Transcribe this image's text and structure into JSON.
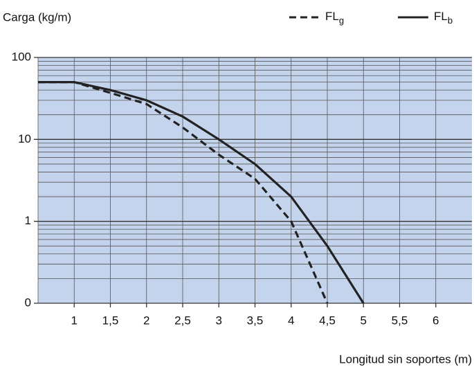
{
  "chart_data": {
    "type": "line",
    "y_label": "Carga (kg/m)",
    "x_label": "Longitud sin soportes (m)",
    "x": [
      0.5,
      1,
      1.5,
      2,
      2.5,
      3,
      3.5,
      4,
      4.5,
      5
    ],
    "series": [
      {
        "name": "FLg",
        "color": "#222222",
        "dash": true,
        "values": [
          50,
          50,
          37,
          27,
          14,
          6.5,
          3.3,
          1,
          0.1,
          null
        ]
      },
      {
        "name": "FLb",
        "color": "#222222",
        "dash": false,
        "values": [
          50,
          50,
          40,
          30,
          19,
          10,
          5,
          2,
          0.5,
          0.1
        ]
      }
    ],
    "xlim": [
      0.5,
      6.5
    ],
    "xticks": [
      1,
      {
        "value": 1.5,
        "label": "1,5"
      },
      2,
      {
        "value": 2.5,
        "label": "2,5"
      },
      3,
      {
        "value": 3.5,
        "label": "3,5"
      },
      4,
      {
        "value": 4.5,
        "label": "4,5"
      },
      5,
      {
        "value": 5.5,
        "label": "5,5"
      },
      6
    ],
    "x_gridlines": [
      0.5,
      1,
      1.5,
      2,
      2.5,
      3,
      3.5,
      4,
      4.5,
      5,
      5.5,
      6
    ],
    "ylim": [
      0.1,
      100
    ],
    "yticks": [
      {
        "value": 0.1,
        "label": "0"
      },
      1,
      10,
      100
    ],
    "y_minor_gridlines": [
      0.2,
      0.3,
      0.4,
      0.5,
      0.6,
      0.7,
      0.8,
      0.9,
      2,
      3,
      4,
      5,
      6,
      7,
      8,
      9,
      20,
      30,
      40,
      50,
      60,
      70,
      80,
      90
    ],
    "log_y": true,
    "grid": true,
    "plot_color": "#c4d4ec",
    "legend": "top-right"
  }
}
